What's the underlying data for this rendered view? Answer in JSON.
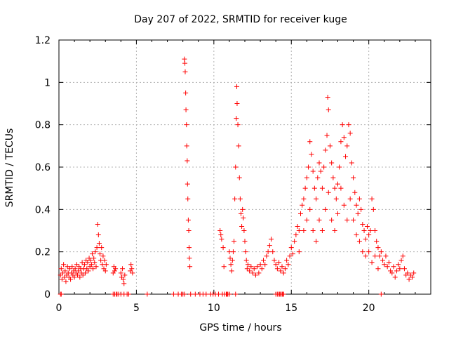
{
  "chart_data": {
    "type": "scatter",
    "title": "Day 207 of 2022, SRMTID for receiver kuge",
    "xlabel": "GPS time / hours",
    "ylabel": "SRMTID / TECUs",
    "xlim": [
      0,
      24
    ],
    "ylim": [
      0,
      1.2
    ],
    "xticks": [
      0,
      5,
      10,
      15,
      20
    ],
    "yticks": [
      0,
      0.2,
      0.4,
      0.6,
      0.8,
      1,
      1.2
    ],
    "grid": true,
    "marker": "+",
    "colors": {
      "points": "#ff0000",
      "grid": "#b0b0b0",
      "axes": "#000000"
    },
    "series": [
      {
        "name": "SRMTID",
        "points": [
          [
            0.1,
            0.09
          ],
          [
            0.15,
            0.12
          ],
          [
            0.2,
            0.07
          ],
          [
            0.25,
            0.1
          ],
          [
            0.3,
            0.14
          ],
          [
            0.35,
            0.08
          ],
          [
            0.4,
            0.11
          ],
          [
            0.45,
            0.06
          ],
          [
            0.5,
            0.09
          ],
          [
            0.55,
            0.13
          ],
          [
            0.6,
            0.1
          ],
          [
            0.65,
            0.08
          ],
          [
            0.7,
            0.12
          ],
          [
            0.75,
            0.07
          ],
          [
            0.8,
            0.1
          ],
          [
            0.85,
            0.13
          ],
          [
            0.9,
            0.09
          ],
          [
            0.95,
            0.11
          ],
          [
            1.0,
            0.08
          ],
          [
            1.05,
            0.12
          ],
          [
            1.1,
            0.1
          ],
          [
            1.15,
            0.14
          ],
          [
            1.2,
            0.09
          ],
          [
            1.25,
            0.11
          ],
          [
            1.3,
            0.13
          ],
          [
            1.35,
            0.08
          ],
          [
            1.4,
            0.12
          ],
          [
            1.45,
            0.1
          ],
          [
            1.5,
            0.15
          ],
          [
            1.55,
            0.09
          ],
          [
            1.6,
            0.12
          ],
          [
            1.65,
            0.14
          ],
          [
            1.7,
            0.1
          ],
          [
            1.75,
            0.16
          ],
          [
            1.8,
            0.12
          ],
          [
            1.85,
            0.15
          ],
          [
            1.9,
            0.11
          ],
          [
            1.95,
            0.17
          ],
          [
            2.0,
            0.13
          ],
          [
            2.05,
            0.16
          ],
          [
            2.1,
            0.14
          ],
          [
            2.15,
            0.19
          ],
          [
            2.2,
            0.12
          ],
          [
            2.25,
            0.17
          ],
          [
            2.3,
            0.15
          ],
          [
            2.35,
            0.2
          ],
          [
            2.4,
            0.13
          ],
          [
            2.45,
            0.22
          ],
          [
            2.5,
            0.33
          ],
          [
            2.55,
            0.28
          ],
          [
            2.6,
            0.24
          ],
          [
            2.65,
            0.19
          ],
          [
            2.7,
            0.16
          ],
          [
            2.75,
            0.22
          ],
          [
            2.8,
            0.14
          ],
          [
            2.85,
            0.18
          ],
          [
            2.9,
            0.12
          ],
          [
            2.95,
            0.16
          ],
          [
            3.0,
            0.11
          ],
          [
            3.05,
            0.14
          ],
          [
            3.5,
            0.1
          ],
          [
            3.55,
            0.13
          ],
          [
            3.6,
            0.11
          ],
          [
            3.65,
            0.12
          ],
          [
            4.0,
            0.1
          ],
          [
            4.05,
            0.08
          ],
          [
            4.1,
            0.12
          ],
          [
            4.15,
            0.07
          ],
          [
            4.2,
            0.05
          ],
          [
            4.25,
            0.09
          ],
          [
            4.6,
            0.11
          ],
          [
            4.65,
            0.14
          ],
          [
            4.7,
            0.12
          ],
          [
            4.75,
            0.1
          ],
          [
            8.1,
            1.11
          ],
          [
            8.13,
            1.09
          ],
          [
            8.15,
            1.05
          ],
          [
            8.18,
            0.95
          ],
          [
            8.2,
            0.87
          ],
          [
            8.23,
            0.8
          ],
          [
            8.25,
            0.7
          ],
          [
            8.28,
            0.63
          ],
          [
            8.3,
            0.52
          ],
          [
            8.32,
            0.45
          ],
          [
            8.35,
            0.35
          ],
          [
            8.38,
            0.3
          ],
          [
            8.4,
            0.22
          ],
          [
            8.42,
            0.17
          ],
          [
            8.45,
            0.13
          ],
          [
            10.4,
            0.3
          ],
          [
            10.45,
            0.28
          ],
          [
            10.5,
            0.26
          ],
          [
            10.6,
            0.22
          ],
          [
            10.65,
            0.13
          ],
          [
            11.0,
            0.2
          ],
          [
            11.05,
            0.17
          ],
          [
            11.1,
            0.14
          ],
          [
            11.15,
            0.11
          ],
          [
            11.2,
            0.16
          ],
          [
            11.25,
            0.2
          ],
          [
            11.3,
            0.25
          ],
          [
            11.35,
            0.45
          ],
          [
            11.4,
            0.6
          ],
          [
            11.45,
            0.83
          ],
          [
            11.48,
            0.98
          ],
          [
            11.5,
            0.9
          ],
          [
            11.55,
            0.8
          ],
          [
            11.6,
            0.7
          ],
          [
            11.65,
            0.55
          ],
          [
            11.7,
            0.45
          ],
          [
            11.75,
            0.38
          ],
          [
            11.8,
            0.32
          ],
          [
            11.85,
            0.4
          ],
          [
            11.9,
            0.36
          ],
          [
            11.95,
            0.3
          ],
          [
            12.0,
            0.25
          ],
          [
            12.05,
            0.2
          ],
          [
            12.1,
            0.16
          ],
          [
            12.15,
            0.12
          ],
          [
            12.2,
            0.14
          ],
          [
            12.3,
            0.11
          ],
          [
            12.4,
            0.13
          ],
          [
            12.5,
            0.1
          ],
          [
            12.6,
            0.12
          ],
          [
            12.7,
            0.09
          ],
          [
            12.8,
            0.13
          ],
          [
            12.9,
            0.1
          ],
          [
            13.0,
            0.14
          ],
          [
            13.1,
            0.12
          ],
          [
            13.2,
            0.16
          ],
          [
            13.3,
            0.14
          ],
          [
            13.4,
            0.18
          ],
          [
            13.5,
            0.2
          ],
          [
            13.6,
            0.23
          ],
          [
            13.7,
            0.26
          ],
          [
            13.8,
            0.2
          ],
          [
            13.9,
            0.16
          ],
          [
            14.0,
            0.14
          ],
          [
            14.1,
            0.12
          ],
          [
            14.2,
            0.15
          ],
          [
            14.3,
            0.11
          ],
          [
            14.4,
            0.13
          ],
          [
            14.5,
            0.1
          ],
          [
            14.6,
            0.12
          ],
          [
            14.7,
            0.16
          ],
          [
            14.8,
            0.14
          ],
          [
            14.9,
            0.18
          ],
          [
            15.0,
            0.22
          ],
          [
            15.1,
            0.19
          ],
          [
            15.2,
            0.25
          ],
          [
            15.3,
            0.28
          ],
          [
            15.4,
            0.32
          ],
          [
            15.5,
            0.3
          ],
          [
            15.6,
            0.38
          ],
          [
            15.7,
            0.42
          ],
          [
            15.8,
            0.45
          ],
          [
            15.9,
            0.5
          ],
          [
            16.0,
            0.55
          ],
          [
            16.1,
            0.6
          ],
          [
            16.2,
            0.72
          ],
          [
            16.3,
            0.66
          ],
          [
            16.4,
            0.58
          ],
          [
            16.5,
            0.5
          ],
          [
            16.6,
            0.45
          ],
          [
            16.7,
            0.55
          ],
          [
            16.8,
            0.62
          ],
          [
            16.9,
            0.58
          ],
          [
            17.0,
            0.5
          ],
          [
            17.1,
            0.6
          ],
          [
            17.2,
            0.68
          ],
          [
            17.3,
            0.75
          ],
          [
            17.35,
            0.93
          ],
          [
            17.4,
            0.87
          ],
          [
            17.5,
            0.7
          ],
          [
            17.6,
            0.62
          ],
          [
            17.7,
            0.55
          ],
          [
            17.8,
            0.5
          ],
          [
            17.9,
            0.45
          ],
          [
            18.0,
            0.52
          ],
          [
            18.1,
            0.6
          ],
          [
            18.2,
            0.72
          ],
          [
            18.3,
            0.8
          ],
          [
            18.4,
            0.74
          ],
          [
            18.5,
            0.65
          ],
          [
            18.6,
            0.7
          ],
          [
            18.7,
            0.8
          ],
          [
            18.8,
            0.76
          ],
          [
            18.9,
            0.62
          ],
          [
            19.0,
            0.55
          ],
          [
            19.1,
            0.48
          ],
          [
            19.2,
            0.42
          ],
          [
            19.3,
            0.38
          ],
          [
            19.4,
            0.45
          ],
          [
            19.5,
            0.4
          ],
          [
            19.6,
            0.33
          ],
          [
            19.7,
            0.3
          ],
          [
            19.8,
            0.26
          ],
          [
            19.9,
            0.32
          ],
          [
            20.0,
            0.28
          ],
          [
            20.1,
            0.3
          ],
          [
            20.2,
            0.45
          ],
          [
            20.3,
            0.4
          ],
          [
            20.4,
            0.3
          ],
          [
            20.5,
            0.25
          ],
          [
            20.6,
            0.22
          ],
          [
            20.7,
            0.18
          ],
          [
            20.8,
            0.2
          ],
          [
            20.9,
            0.16
          ],
          [
            21.0,
            0.14
          ],
          [
            21.1,
            0.18
          ],
          [
            21.2,
            0.13
          ],
          [
            21.3,
            0.15
          ],
          [
            21.4,
            0.11
          ],
          [
            21.5,
            0.1
          ],
          [
            21.6,
            0.13
          ],
          [
            21.7,
            0.08
          ],
          [
            21.8,
            0.11
          ],
          [
            21.9,
            0.14
          ],
          [
            22.0,
            0.12
          ],
          [
            22.1,
            0.16
          ],
          [
            22.2,
            0.18
          ],
          [
            22.3,
            0.12
          ],
          [
            22.4,
            0.09
          ],
          [
            22.5,
            0.1
          ],
          [
            22.6,
            0.07
          ],
          [
            22.7,
            0.09
          ],
          [
            22.8,
            0.08
          ],
          [
            22.9,
            0.1
          ],
          [
            15.5,
            0.2
          ],
          [
            15.8,
            0.3
          ],
          [
            16.0,
            0.35
          ],
          [
            16.2,
            0.4
          ],
          [
            16.4,
            0.3
          ],
          [
            16.6,
            0.25
          ],
          [
            16.8,
            0.35
          ],
          [
            17.0,
            0.3
          ],
          [
            17.2,
            0.4
          ],
          [
            17.4,
            0.48
          ],
          [
            17.6,
            0.35
          ],
          [
            17.8,
            0.3
          ],
          [
            18.0,
            0.38
          ],
          [
            18.2,
            0.5
          ],
          [
            18.4,
            0.42
          ],
          [
            18.6,
            0.35
          ],
          [
            18.8,
            0.45
          ],
          [
            19.0,
            0.35
          ],
          [
            19.2,
            0.28
          ],
          [
            19.4,
            0.25
          ],
          [
            19.6,
            0.2
          ],
          [
            19.8,
            0.18
          ],
          [
            20.0,
            0.2
          ],
          [
            20.2,
            0.15
          ],
          [
            20.4,
            0.18
          ],
          [
            20.6,
            0.12
          ]
        ],
        "zero_points": [
          0.1,
          0.15,
          3.5,
          3.6,
          3.7,
          3.75,
          3.85,
          4.0,
          4.2,
          4.4,
          4.5,
          5.7,
          7.4,
          7.7,
          7.9,
          8.0,
          8.1,
          8.5,
          8.8,
          9.1,
          9.3,
          9.5,
          9.8,
          9.95,
          10.1,
          10.3,
          10.55,
          10.7,
          10.8,
          10.85,
          10.9,
          11.0,
          11.4,
          14.0,
          14.1,
          14.2,
          14.25,
          14.3,
          14.4,
          14.45,
          14.5,
          20.8
        ]
      }
    ]
  }
}
